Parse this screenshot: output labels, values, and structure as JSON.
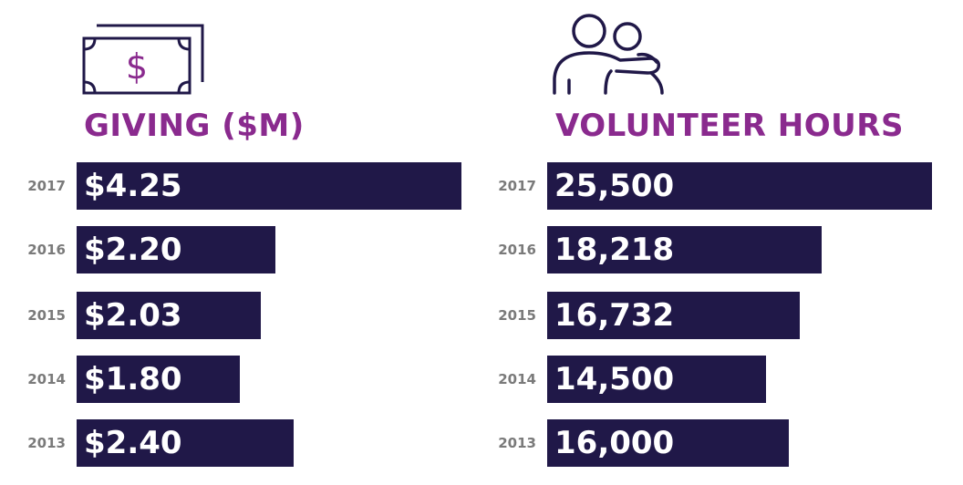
{
  "colors": {
    "bar": "#201848",
    "title": "#8a2a8e",
    "icon_stroke": "#201848",
    "icon_accent": "#8a2a8e",
    "year_label": "#7a7a7a"
  },
  "giving": {
    "title": "GIVING ($M)",
    "icon": "money-bill-icon",
    "icon_glyph": "$"
  },
  "volunteer": {
    "title": "VOLUNTEER HOURS",
    "icon": "two-people-hug-icon"
  },
  "chart_data": [
    {
      "type": "bar",
      "orientation": "horizontal",
      "title": "GIVING ($M)",
      "categories": [
        "2017",
        "2016",
        "2015",
        "2014",
        "2013"
      ],
      "values": [
        4.25,
        2.2,
        2.03,
        1.8,
        2.4
      ],
      "value_labels": [
        "$4.25",
        "$2.20",
        "$2.03",
        "$1.80",
        "$2.40"
      ],
      "xlim": [
        0,
        4.25
      ],
      "grid": false,
      "legend": "none"
    },
    {
      "type": "bar",
      "orientation": "horizontal",
      "title": "VOLUNTEER HOURS",
      "categories": [
        "2017",
        "2016",
        "2015",
        "2014",
        "2013"
      ],
      "values": [
        25500,
        18218,
        16732,
        14500,
        16000
      ],
      "value_labels": [
        "25,500",
        "18,218",
        "16,732",
        "14,500",
        "16,000"
      ],
      "xlim": [
        0,
        25500
      ],
      "grid": false,
      "legend": "none"
    }
  ]
}
